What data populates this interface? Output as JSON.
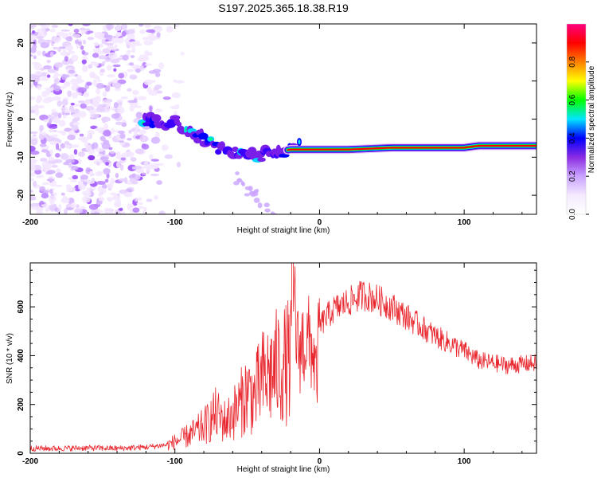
{
  "title": "S197.2025.365.18.38.R19",
  "chart_data": [
    {
      "type": "heatmap",
      "xlabel": "Height of straight line (km)",
      "ylabel": "Frequency (Hz)",
      "xlim": [
        -200,
        150
      ],
      "ylim": [
        -25,
        25
      ],
      "xticks": [
        -200,
        -100,
        0,
        100
      ],
      "yticks": [
        -20,
        -10,
        0,
        10,
        20
      ],
      "colorbar": {
        "label": "Normalized spectral amplitude",
        "range": [
          0,
          1
        ],
        "ticks": [
          "0.0",
          "0.2",
          "0.4",
          "0.6",
          "0.8"
        ],
        "colors": [
          "#ffffff",
          "#f5eaff",
          "#c9a2ff",
          "#8a2be2",
          "#0000ff",
          "#00e5ff",
          "#00ff00",
          "#ffff00",
          "#ff8000",
          "#ff0000",
          "#ff0080"
        ]
      },
      "ridge": {
        "x": [
          -120,
          -110,
          -100,
          -90,
          -80,
          -70,
          -60,
          -50,
          -40,
          -30,
          -20,
          -10,
          0,
          20,
          50,
          100,
          110,
          150
        ],
        "frequency": [
          0,
          -0.5,
          -1,
          -3,
          -5,
          -7.5,
          -9,
          -10,
          -9.5,
          -8.5,
          -8,
          -8,
          -8,
          -8,
          -7.5,
          -7.5,
          -7,
          -7
        ]
      }
    },
    {
      "type": "line",
      "xlabel": "Height of straight line (km)",
      "ylabel": "SNR (10 * v/v)",
      "xlim": [
        -200,
        150
      ],
      "ylim": [
        0,
        780
      ],
      "xticks": [
        -200,
        -100,
        0,
        100
      ],
      "yticks": [
        0,
        200,
        400,
        600
      ],
      "color": "#e8262d",
      "series": [
        {
          "name": "SNR",
          "x": [
            -200,
            -180,
            -160,
            -140,
            -120,
            -105,
            -95,
            -85,
            -78,
            -72,
            -65,
            -60,
            -55,
            -50,
            -45,
            -40,
            -35,
            -30,
            -25,
            -20,
            -19,
            -15,
            -10,
            -5,
            -2,
            0,
            5,
            10,
            20,
            30,
            40,
            50,
            60,
            70,
            80,
            90,
            100,
            105,
            110,
            120,
            130,
            140,
            150
          ],
          "y": [
            20,
            20,
            22,
            20,
            25,
            35,
            60,
            90,
            120,
            160,
            130,
            160,
            200,
            250,
            230,
            300,
            320,
            350,
            360,
            380,
            760,
            420,
            460,
            440,
            300,
            520,
            560,
            590,
            620,
            650,
            630,
            600,
            560,
            520,
            480,
            450,
            420,
            400,
            380,
            370,
            360,
            365,
            370
          ]
        }
      ]
    }
  ]
}
